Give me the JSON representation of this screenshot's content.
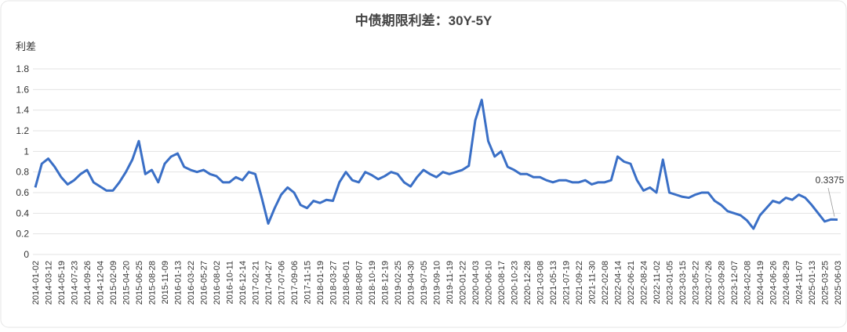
{
  "chart_data": {
    "type": "line",
    "title": "中债期限利差：30Y-5Y",
    "y_label": "利差",
    "categories": [
      "2014-01-02",
      null,
      "2014-03-12",
      null,
      "2014-05-19",
      null,
      "2014-07-23",
      null,
      "2014-09-26",
      null,
      "2014-12-04",
      null,
      "2015-02-09",
      null,
      "2015-04-20",
      null,
      "2015-06-25",
      null,
      "2015-08-28",
      null,
      "2015-11-09",
      null,
      "2016-01-13",
      null,
      "2016-03-22",
      null,
      "2016-05-27",
      null,
      "2016-08-02",
      null,
      "2016-10-11",
      null,
      "2016-12-14",
      null,
      "2017-02-21",
      null,
      "2017-04-27",
      null,
      "2017-07-06",
      null,
      "2017-09-06",
      null,
      "2017-11-15",
      null,
      "2018-01-19",
      null,
      "2018-03-27",
      null,
      "2018-06-01",
      null,
      "2018-08-07",
      null,
      "2018-10-19",
      null,
      "2018-12-19",
      null,
      "2019-02-25",
      null,
      "2019-04-30",
      null,
      "2019-07-05",
      null,
      "2019-09-10",
      null,
      "2019-11-19",
      null,
      "2020-01-22",
      null,
      "2020-04-03",
      null,
      "2020-06-10",
      null,
      "2020-08-17",
      null,
      "2020-10-23",
      null,
      "2020-12-28",
      null,
      "2021-03-08",
      null,
      "2021-05-13",
      null,
      "2021-07-19",
      null,
      "2021-09-22",
      null,
      "2021-11-30",
      null,
      "2022-02-08",
      null,
      "2022-04-14",
      null,
      "2022-06-21",
      null,
      "2022-08-24",
      null,
      "2022-11-02",
      null,
      "2023-01-05",
      null,
      "2023-03-15",
      null,
      "2023-05-22",
      null,
      "2023-07-26",
      null,
      "2023-09-28",
      null,
      "2023-12-07",
      null,
      "2024-02-08",
      null,
      "2024-04-19",
      null,
      "2024-06-26",
      null,
      "2024-08-29",
      null,
      "2024-11-07",
      null,
      "2025-01-13",
      null,
      "2025-03-25",
      null,
      "2025-06-03"
    ],
    "series": [
      {
        "name": "利差",
        "color": "#3a6fc6",
        "values": [
          0.65,
          0.88,
          0.93,
          0.85,
          0.75,
          0.68,
          0.72,
          0.78,
          0.82,
          0.7,
          0.66,
          0.62,
          0.62,
          0.7,
          0.8,
          0.92,
          1.1,
          0.78,
          0.82,
          0.7,
          0.88,
          0.95,
          0.98,
          0.85,
          0.82,
          0.8,
          0.82,
          0.78,
          0.76,
          0.7,
          0.7,
          0.75,
          0.72,
          0.8,
          0.78,
          0.55,
          0.3,
          0.45,
          0.58,
          0.65,
          0.6,
          0.48,
          0.45,
          0.52,
          0.5,
          0.53,
          0.52,
          0.7,
          0.8,
          0.72,
          0.7,
          0.8,
          0.77,
          0.73,
          0.76,
          0.8,
          0.78,
          0.7,
          0.66,
          0.75,
          0.82,
          0.78,
          0.75,
          0.8,
          0.78,
          0.8,
          0.82,
          0.86,
          1.3,
          1.5,
          1.1,
          0.95,
          1.0,
          0.85,
          0.82,
          0.78,
          0.78,
          0.75,
          0.75,
          0.72,
          0.7,
          0.72,
          0.72,
          0.7,
          0.7,
          0.72,
          0.68,
          0.7,
          0.7,
          0.72,
          0.95,
          0.9,
          0.88,
          0.72,
          0.62,
          0.65,
          0.6,
          0.92,
          0.6,
          0.58,
          0.56,
          0.55,
          0.58,
          0.6,
          0.6,
          0.52,
          0.48,
          0.42,
          0.4,
          0.38,
          0.33,
          0.25,
          0.38,
          0.45,
          0.52,
          0.5,
          0.55,
          0.53,
          0.58,
          0.55,
          0.48,
          0.4,
          0.32,
          0.34,
          0.3375
        ]
      }
    ],
    "ylim": [
      0,
      1.8
    ],
    "yticks": [
      0,
      0.2,
      0.4,
      0.6,
      0.8,
      1,
      1.2,
      1.4,
      1.6,
      1.8
    ],
    "grid": true
  }
}
